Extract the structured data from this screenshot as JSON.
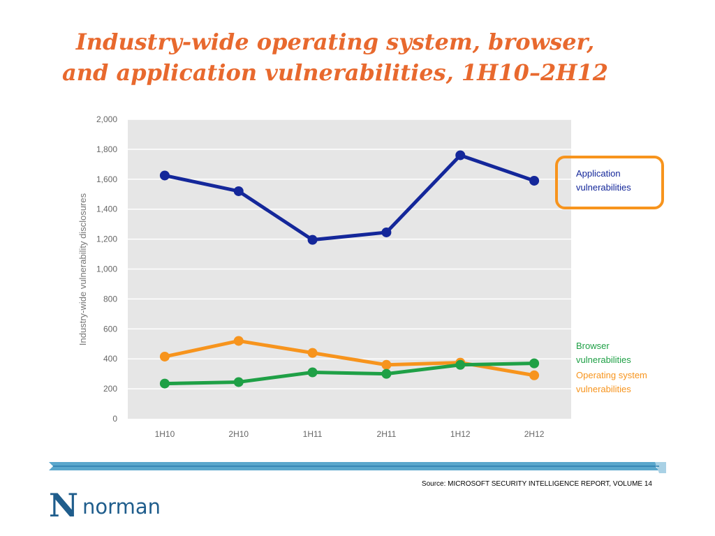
{
  "slide": {
    "title_line1": "Industry-wide operating system, browser,",
    "title_line2": "and application vulnerabilities, 1H10–2H12",
    "source": "Source: MICROSOFT SECURITY INTELLIGENCE REPORT, VOLUME 14",
    "logo_mark": "N",
    "logo_text": "norman"
  },
  "colors": {
    "title": "#E8692E",
    "plot_bg": "#E6E6E6",
    "application": "#14279A",
    "browser": "#1FA046",
    "os": "#F7941D",
    "highlight_box": "#F7941D",
    "band": "#5AA7CC"
  },
  "chart_data": {
    "type": "line",
    "title": "",
    "xlabel": "",
    "ylabel": "Industry-wide vulnerability disclosures",
    "categories": [
      "1H10",
      "2H10",
      "1H11",
      "2H11",
      "1H12",
      "2H12"
    ],
    "ylim": [
      0,
      2000
    ],
    "yticks": [
      0,
      200,
      400,
      600,
      800,
      1000,
      1200,
      1400,
      1600,
      1800,
      2000
    ],
    "ytick_labels": [
      "0",
      "200",
      "400",
      "600",
      "800",
      "1,000",
      "1,200",
      "1,400",
      "1,600",
      "1,800",
      "2,000"
    ],
    "grid": "horizontal",
    "legend_placement": "right",
    "series": [
      {
        "key": "application",
        "name": "Application vulnerabilities",
        "label_lines": [
          "Application",
          "vulnerabilities"
        ],
        "values": [
          1625,
          1520,
          1195,
          1245,
          1760,
          1590
        ],
        "highlighted": true
      },
      {
        "key": "browser",
        "name": "Browser vulnerabilities",
        "label_lines": [
          "Browser",
          "vulnerabilities"
        ],
        "values": [
          235,
          245,
          310,
          300,
          360,
          370
        ]
      },
      {
        "key": "os",
        "name": "Operating system vulnerabilities",
        "label_lines": [
          "Operating system",
          "vulnerabilities"
        ],
        "values": [
          415,
          520,
          440,
          360,
          375,
          290
        ]
      }
    ]
  }
}
